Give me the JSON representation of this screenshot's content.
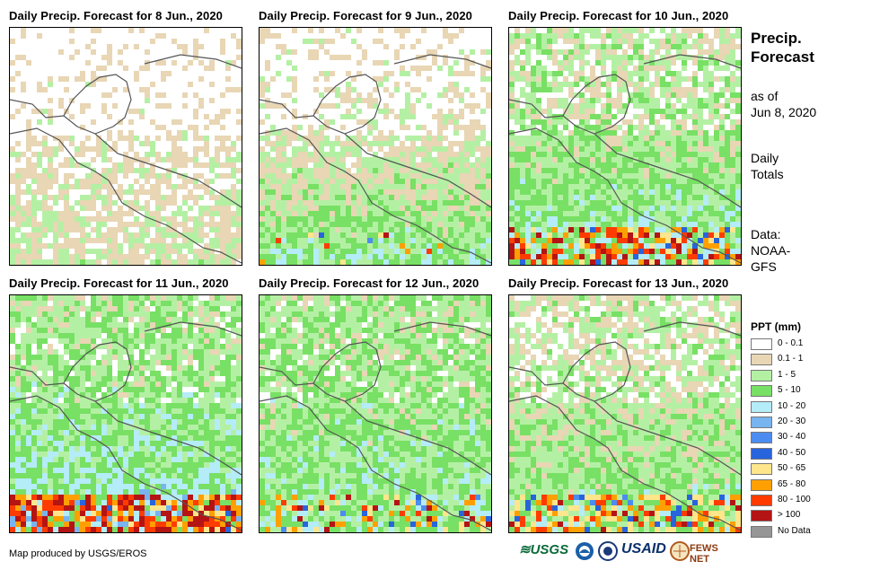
{
  "panels": [
    {
      "title": "Daily Precip. Forecast for 8 Jun., 2020"
    },
    {
      "title": "Daily Precip. Forecast for 9 Jun., 2020"
    },
    {
      "title": "Daily Precip. Forecast for 10 Jun., 2020"
    },
    {
      "title": "Daily Precip. Forecast for 11 Jun., 2020"
    },
    {
      "title": "Daily Precip. Forecast for 12 Jun., 2020"
    },
    {
      "title": "Daily Precip. Forecast for 13 Jun., 2020"
    }
  ],
  "sidebar": {
    "title_line1": "Precip.",
    "title_line2": "Forecast",
    "asof_line1": "as of",
    "asof_line2": "Jun 8, 2020",
    "totals_line1": "Daily",
    "totals_line2": "Totals",
    "data_line1": "Data:",
    "data_line2": "NOAA-",
    "data_line3": "GFS"
  },
  "legend": {
    "title": "PPT (mm)",
    "items": [
      {
        "label": "0 - 0.1",
        "color": "#ffffff"
      },
      {
        "label": "0.1 - 1",
        "color": "#e8d6b4"
      },
      {
        "label": "1 - 5",
        "color": "#b4f0a4"
      },
      {
        "label": "5 - 10",
        "color": "#78e064"
      },
      {
        "label": "10 - 20",
        "color": "#b4ecf8"
      },
      {
        "label": "20 - 30",
        "color": "#78b4f0"
      },
      {
        "label": "30 - 40",
        "color": "#4c8cf0"
      },
      {
        "label": "40 - 50",
        "color": "#2864dc"
      },
      {
        "label": "50 - 65",
        "color": "#ffe68c"
      },
      {
        "label": "65 - 80",
        "color": "#ffa000"
      },
      {
        "label": "80 - 100",
        "color": "#ff3c00"
      },
      {
        "label": "> 100",
        "color": "#b41414"
      },
      {
        "label": "No Data",
        "color": "#969696"
      }
    ]
  },
  "credit": "Map produced by USGS/EROS",
  "logos": {
    "usgs": "≋USGS",
    "usaid": "USAID",
    "fewsnet": "FEWS NET"
  }
}
